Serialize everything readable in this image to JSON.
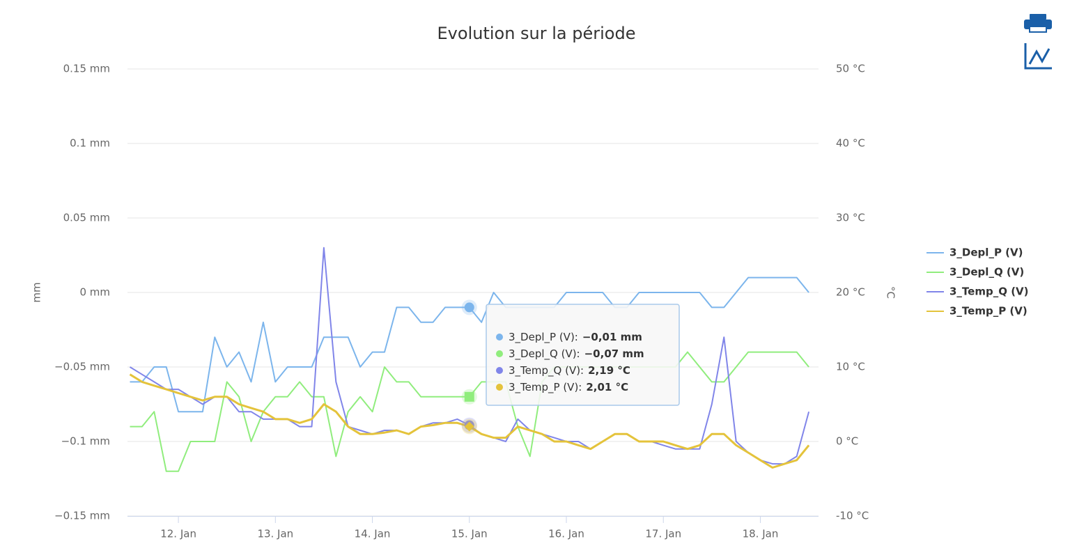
{
  "chart_data": {
    "type": "line",
    "title": "Evolution sur la période",
    "y_label": "mm",
    "y2_label": "°C",
    "x": [
      11.5,
      11.625,
      11.75,
      11.875,
      12,
      12.125,
      12.25,
      12.375,
      12.5,
      12.625,
      12.75,
      12.875,
      13,
      13.125,
      13.25,
      13.375,
      13.5,
      13.625,
      13.75,
      13.875,
      14,
      14.125,
      14.25,
      14.375,
      14.5,
      14.625,
      14.75,
      14.875,
      15,
      15.125,
      15.25,
      15.375,
      15.5,
      15.625,
      15.75,
      15.875,
      16,
      16.125,
      16.25,
      16.375,
      16.5,
      16.625,
      16.75,
      16.875,
      17,
      17.125,
      17.25,
      17.375,
      17.5,
      17.625,
      17.75,
      17.875,
      18,
      18.125,
      18.25,
      18.375,
      18.5
    ],
    "xlim": [
      11.475,
      18.6
    ],
    "xticks": [
      {
        "value": 12,
        "label": "12. Jan"
      },
      {
        "value": 13,
        "label": "13. Jan"
      },
      {
        "value": 14,
        "label": "14. Jan"
      },
      {
        "value": 15,
        "label": "15. Jan"
      },
      {
        "value": 16,
        "label": "16. Jan"
      },
      {
        "value": 17,
        "label": "17. Jan"
      },
      {
        "value": 18,
        "label": "18. Jan"
      }
    ],
    "ylim": [
      -0.15,
      0.15
    ],
    "yticks": [
      {
        "value": -0.15,
        "label": "−0.15 mm"
      },
      {
        "value": -0.1,
        "label": "−0.1 mm"
      },
      {
        "value": -0.05,
        "label": "−0.05 mm"
      },
      {
        "value": 0,
        "label": "0 mm"
      },
      {
        "value": 0.05,
        "label": "0.05 mm"
      },
      {
        "value": 0.1,
        "label": "0.1 mm"
      },
      {
        "value": 0.15,
        "label": "0.15 mm"
      }
    ],
    "y2lim": [
      -10,
      50
    ],
    "y2ticks": [
      {
        "value": -10,
        "label": "-10 °C"
      },
      {
        "value": 0,
        "label": "0 °C"
      },
      {
        "value": 10,
        "label": "10 °C"
      },
      {
        "value": 20,
        "label": "20 °C"
      },
      {
        "value": 30,
        "label": "30 °C"
      },
      {
        "value": 40,
        "label": "40 °C"
      },
      {
        "value": 50,
        "label": "50 °C"
      }
    ],
    "grid": true,
    "legend": "right",
    "series": [
      {
        "name": "3_Depl_P (V)",
        "color": "#7cb5ec",
        "axis": "y",
        "values": [
          -0.06,
          -0.06,
          -0.05,
          -0.05,
          -0.08,
          -0.08,
          -0.08,
          -0.03,
          -0.05,
          -0.04,
          -0.06,
          -0.02,
          -0.06,
          -0.05,
          -0.05,
          -0.05,
          -0.03,
          -0.03,
          -0.03,
          -0.05,
          -0.04,
          -0.04,
          -0.01,
          -0.01,
          -0.02,
          -0.02,
          -0.01,
          -0.01,
          -0.01,
          -0.02,
          0,
          -0.01,
          -0.01,
          -0.01,
          -0.01,
          -0.01,
          0,
          0,
          0,
          0,
          -0.01,
          -0.01,
          0,
          0,
          0,
          0,
          0,
          0,
          -0.01,
          -0.01,
          0,
          0.01,
          0.01,
          0.01,
          0.01,
          0.01,
          0
        ]
      },
      {
        "name": "3_Depl_Q (V)",
        "color": "#90ed7d",
        "axis": "y",
        "values": [
          -0.09,
          -0.09,
          -0.08,
          -0.12,
          -0.12,
          -0.1,
          -0.1,
          -0.1,
          -0.06,
          -0.07,
          -0.1,
          -0.08,
          -0.07,
          -0.07,
          -0.06,
          -0.07,
          -0.07,
          -0.11,
          -0.08,
          -0.07,
          -0.08,
          -0.05,
          -0.06,
          -0.06,
          -0.07,
          -0.07,
          -0.07,
          -0.07,
          -0.07,
          -0.06,
          -0.06,
          -0.06,
          -0.09,
          -0.11,
          -0.06,
          -0.05,
          -0.05,
          -0.05,
          -0.05,
          -0.05,
          -0.05,
          -0.05,
          -0.05,
          -0.05,
          -0.05,
          -0.05,
          -0.04,
          -0.05,
          -0.06,
          -0.06,
          -0.05,
          -0.04,
          -0.04,
          -0.04,
          -0.04,
          -0.04,
          -0.05
        ]
      },
      {
        "name": "3_Temp_Q (V)",
        "color": "#8085e9",
        "axis": "y2",
        "values": [
          10,
          9,
          8,
          7,
          7,
          6,
          5,
          6,
          6,
          4,
          4,
          3,
          3,
          3,
          2,
          2,
          26,
          8,
          2,
          1.5,
          1,
          1.5,
          1.5,
          1,
          2,
          2.5,
          2.5,
          3,
          2.19,
          1,
          0.5,
          0,
          3,
          1.5,
          1,
          0.5,
          0,
          0,
          -1,
          0,
          1,
          1,
          0,
          0,
          -0.5,
          -1,
          -1,
          -1,
          5,
          14,
          0,
          -1.5,
          -2.5,
          -3,
          -3,
          -2,
          4
        ]
      },
      {
        "name": "3_Temp_P (V)",
        "color": "#e4c33b",
        "axis": "y2",
        "values": [
          9,
          8,
          7.5,
          7,
          6.5,
          6,
          5.5,
          6,
          6,
          5,
          4.5,
          4,
          3,
          3,
          2.5,
          3,
          5,
          4,
          2,
          1,
          1,
          1.2,
          1.5,
          1,
          2,
          2.2,
          2.5,
          2.5,
          2.01,
          1,
          0.5,
          0.5,
          2,
          1.5,
          1,
          0,
          0,
          -0.5,
          -1,
          0,
          1,
          1,
          0,
          0,
          0,
          -0.5,
          -1,
          -0.5,
          1,
          1,
          -0.5,
          -1.5,
          -2.5,
          -3.5,
          -3,
          -2.5,
          -0.5
        ]
      }
    ],
    "tooltip": [
      {
        "label": "3_Depl_P (V):",
        "value": "−0,01 mm"
      },
      {
        "label": "3_Depl_Q (V):",
        "value": "−0,07 mm"
      },
      {
        "label": "3_Temp_Q (V):",
        "value": "2,19 °C"
      },
      {
        "label": "3_Temp_P (V):",
        "value": "2,01 °C"
      }
    ]
  }
}
